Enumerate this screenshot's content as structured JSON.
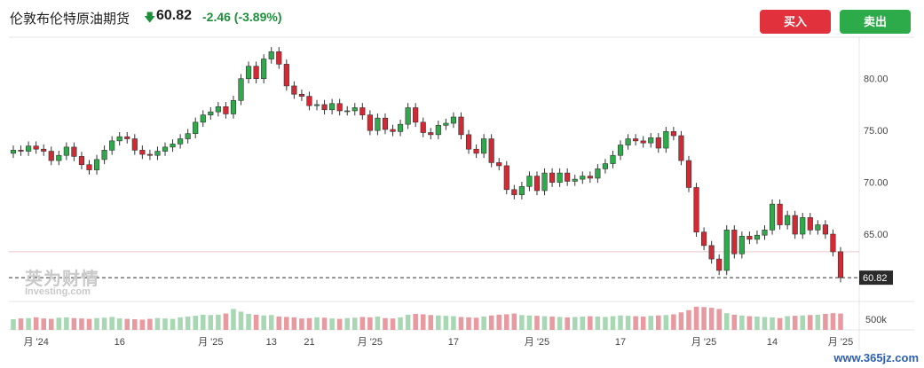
{
  "header": {
    "title": "伦敦布伦特原油期货",
    "arrow": "🡇",
    "price": "60.82",
    "change": "-2.46 (-3.89%)",
    "buy_label": "买入",
    "sell_label": "卖出"
  },
  "colors": {
    "up": "#2daa49",
    "down": "#d22a35",
    "up_vol": "#a8d8b3",
    "down_vol": "#e79aa0"
  },
  "watermark": {
    "cn": "英为财情",
    "en": "Investing.com"
  },
  "site": "www.365jz.com",
  "chart_data": {
    "type": "candlestick",
    "y_ticks": [
      "80.00",
      "75.00",
      "70.00",
      "65.00"
    ],
    "ylim": [
      58.5,
      84.0
    ],
    "current_price_label": "60.82",
    "reference_line": 63.3,
    "volume_label": "500k",
    "x_labels": [
      "月 '24",
      "16",
      "月 '25",
      "13",
      "21",
      "月 '25",
      "17",
      "月 '25",
      "17",
      "月 '25",
      "14",
      "月 '25"
    ],
    "closes": [
      73.1,
      73.0,
      73.5,
      73.2,
      73.0,
      72.1,
      72.6,
      73.4,
      72.5,
      71.7,
      71.2,
      72.2,
      73.1,
      74.0,
      74.4,
      74.2,
      73.1,
      72.7,
      72.6,
      73.0,
      73.4,
      73.7,
      74.2,
      74.7,
      75.8,
      76.5,
      76.8,
      77.3,
      76.6,
      77.9,
      80.0,
      81.2,
      80.0,
      81.9,
      82.6,
      81.4,
      79.3,
      78.5,
      78.3,
      77.4,
      77.5,
      77.0,
      77.6,
      76.9,
      76.9,
      77.2,
      76.5,
      75.0,
      76.2,
      75.1,
      74.9,
      75.6,
      77.2,
      75.8,
      74.8,
      74.6,
      75.5,
      75.7,
      76.3,
      74.6,
      73.2,
      72.8,
      74.2,
      71.9,
      71.6,
      69.3,
      68.8,
      69.6,
      70.6,
      69.2,
      70.9,
      70.0,
      70.9,
      70.1,
      70.3,
      70.6,
      70.4,
      71.3,
      71.8,
      72.6,
      73.6,
      74.2,
      74.0,
      73.8,
      74.3,
      73.3,
      74.9,
      74.5,
      72.1,
      69.5,
      65.2,
      63.9,
      62.6,
      61.5,
      65.4,
      63.1,
      64.8,
      64.5,
      64.9,
      65.4,
      67.9,
      65.9,
      66.8,
      65.0,
      66.6,
      65.4,
      65.9,
      65.0,
      63.3,
      60.8
    ],
    "volumes": [
      28,
      30,
      31,
      33,
      30,
      29,
      32,
      33,
      31,
      30,
      29,
      31,
      32,
      34,
      30,
      29,
      28,
      27,
      29,
      31,
      30,
      29,
      33,
      35,
      37,
      40,
      39,
      40,
      43,
      55,
      48,
      42,
      40,
      38,
      39,
      35,
      34,
      33,
      30,
      31,
      33,
      32,
      30,
      29,
      31,
      32,
      34,
      33,
      35,
      31,
      30,
      33,
      40,
      42,
      41,
      39,
      38,
      37,
      36,
      34,
      33,
      32,
      35,
      38,
      40,
      41,
      43,
      39,
      38,
      37,
      36,
      35,
      34,
      33,
      34,
      35,
      36,
      35,
      34,
      36,
      38,
      37,
      36,
      35,
      37,
      38,
      39,
      41,
      46,
      52,
      61,
      60,
      58,
      55,
      44,
      40,
      38,
      36,
      35,
      34,
      33,
      31,
      36,
      37,
      38,
      39,
      40,
      42,
      44,
      43
    ]
  }
}
